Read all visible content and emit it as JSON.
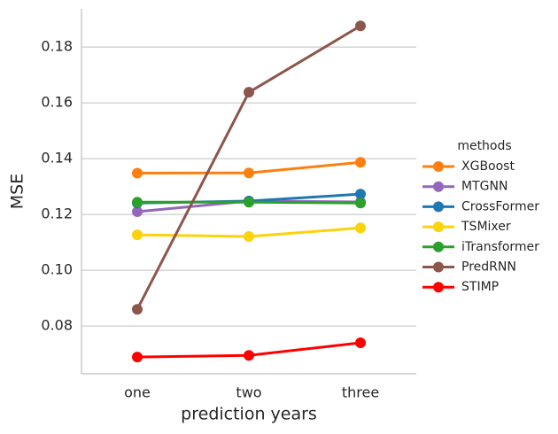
{
  "chart_data": {
    "type": "line",
    "xlabel": "prediction years",
    "ylabel": "MSE",
    "categories": [
      "one",
      "two",
      "three"
    ],
    "legend_title": "methods",
    "legend": "right",
    "series": [
      {
        "name": "XGBoost",
        "color": "#ff7f0e",
        "values": [
          0.1348,
          0.1349,
          0.1387
        ]
      },
      {
        "name": "MTGNN",
        "color": "#9467bd",
        "values": [
          0.121,
          0.1248,
          0.1245
        ]
      },
      {
        "name": "CrossFormer",
        "color": "#1f77b4",
        "values": [
          0.1241,
          0.1248,
          0.1273
        ]
      },
      {
        "name": "TSMixer",
        "color": "#fdd20a",
        "values": [
          0.1127,
          0.1121,
          0.1152
        ]
      },
      {
        "name": "iTransformer",
        "color": "#2ca02c",
        "values": [
          0.1244,
          0.1244,
          0.1241
        ]
      },
      {
        "name": "PredRNN",
        "color": "#8c564b",
        "values": [
          0.086,
          0.1638,
          0.1876
        ]
      },
      {
        "name": "STIMP",
        "color": "#ff0000",
        "values": [
          0.0689,
          0.0695,
          0.074
        ]
      }
    ],
    "ylim": [
      0.0629,
      0.1937
    ],
    "yticks": [
      {
        "value": 0.08,
        "label": "0.08"
      },
      {
        "value": 0.1,
        "label": "0.10"
      },
      {
        "value": 0.12,
        "label": "0.12"
      },
      {
        "value": 0.14,
        "label": "0.14"
      },
      {
        "value": 0.16,
        "label": "0.16"
      },
      {
        "value": 0.18,
        "label": "0.18"
      }
    ],
    "grid": true
  }
}
